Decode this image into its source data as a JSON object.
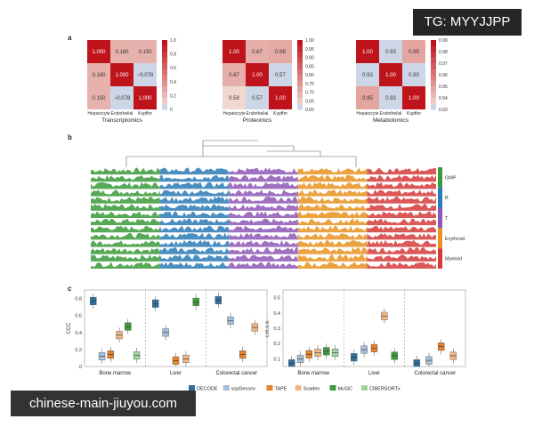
{
  "watermark_top": "TG: MYYJJPP",
  "watermark_bottom": "chinese-main-jiuyou.com",
  "panel_a": {
    "letter": "a",
    "heatmaps": [
      {
        "title": "Transcriptomics",
        "labels": [
          "Hepatocyte",
          "Endothelial",
          "Kupffer"
        ],
        "matrix": [
          [
            1.0,
            0.16,
            0.15
          ],
          [
            0.16,
            1.0,
            -0.078
          ],
          [
            0.15,
            -0.078,
            1.0
          ]
        ],
        "cell_text": [
          [
            "1.000",
            "0.160",
            "0.150"
          ],
          [
            "0.160",
            "1.000",
            "−0.078"
          ],
          [
            "0.150",
            "−0.078",
            "1.000"
          ]
        ],
        "vmin": -0.078,
        "vmax": 1.0,
        "ticks": [
          "1.0",
          "0.8",
          "0.6",
          "0.4",
          "0.2",
          "0"
        ]
      },
      {
        "title": "Proteomics",
        "labels": [
          "Hepatocyte",
          "Endothelial",
          "Kupffer"
        ],
        "matrix": [
          [
            1.0,
            0.67,
            0.68
          ],
          [
            0.67,
            1.0,
            0.57
          ],
          [
            0.58,
            0.57,
            1.0
          ]
        ],
        "cell_text": [
          [
            "1.00",
            "0.67",
            "0.68"
          ],
          [
            "0.67",
            "1.00",
            "0.57"
          ],
          [
            "0.58",
            "0.57",
            "1.00"
          ]
        ],
        "vmin": 0.57,
        "vmax": 1.0,
        "ticks": [
          "1.00",
          "0.95",
          "0.90",
          "0.85",
          "0.80",
          "0.75",
          "0.70",
          "0.65",
          "0.60"
        ]
      },
      {
        "title": "Metabolomics",
        "labels": [
          "Hepatocyte",
          "Endothelial",
          "Kupffer"
        ],
        "matrix": [
          [
            1.0,
            0.93,
            0.95
          ],
          [
            0.93,
            1.0,
            0.93
          ],
          [
            0.95,
            0.93,
            1.0
          ]
        ],
        "cell_text": [
          [
            "1.00",
            "0.93",
            "0.95"
          ],
          [
            "0.93",
            "1.00",
            "0.93"
          ],
          [
            "0.95",
            "0.93",
            "1.00"
          ]
        ],
        "vmin": 0.93,
        "vmax": 1.0,
        "ticks": [
          "0.99",
          "0.98",
          "0.97",
          "0.96",
          "0.95",
          "0.94",
          "0.93"
        ]
      }
    ]
  },
  "panel_b": {
    "letter": "b",
    "groups": [
      {
        "name": "GMP",
        "color": "#3a9a3a"
      },
      {
        "name": "B",
        "color": "#2c7bb6"
      },
      {
        "name": "T",
        "color": "#8e57b5"
      },
      {
        "name": "Erythroid",
        "color": "#e8921f"
      },
      {
        "name": "Myeloid",
        "color": "#d43b3b"
      }
    ],
    "legend": [
      "GMP",
      "B",
      "T",
      "Erythroid",
      "Myeloid"
    ],
    "track_rows": 14
  },
  "panel_c": {
    "letter": "c",
    "left": {
      "ylabel": "CCC",
      "yticks": [
        "0.8",
        "0.6",
        "0.4",
        "0.2",
        "0"
      ],
      "ylim": [
        0,
        0.9
      ],
      "groups": [
        "Bone marrow",
        "Liver",
        "Colorectal cancer"
      ]
    },
    "right": {
      "ylabel": "r.m.s.e.",
      "yticks": [
        "0.5",
        "0.4",
        "0.3",
        "0.2",
        "0.1"
      ],
      "ylim": [
        0.05,
        0.55
      ],
      "groups": [
        "Bone marrow",
        "Liver",
        "Colorectal cancer"
      ]
    },
    "methods": [
      {
        "name": "DECODE",
        "color": "#2e6f9e"
      },
      {
        "name": "scpDeconv",
        "color": "#a6bfd8"
      },
      {
        "name": "TAPE",
        "color": "#e5822a"
      },
      {
        "name": "Scaden",
        "color": "#efb583"
      },
      {
        "name": "MuSiC",
        "color": "#3d9b3d"
      },
      {
        "name": "CIBERSORTx",
        "color": "#9fd69f"
      }
    ]
  },
  "chart_data": [
    {
      "type": "box",
      "ylabel": "CCC",
      "ylim": [
        0,
        0.9
      ],
      "categories": [
        "Bone marrow",
        "Liver",
        "Colorectal cancer"
      ],
      "series": [
        {
          "name": "DECODE",
          "medians": [
            0.77,
            0.74,
            0.78
          ]
        },
        {
          "name": "scpDeconv",
          "medians": [
            0.12,
            0.4,
            0.54
          ]
        },
        {
          "name": "TAPE",
          "medians": [
            0.14,
            0.07,
            0.14
          ]
        },
        {
          "name": "Scaden",
          "medians": [
            0.37,
            0.09,
            0.46
          ]
        },
        {
          "name": "MuSiC",
          "medians": [
            0.47,
            0.76,
            null
          ]
        },
        {
          "name": "CIBERSORTx",
          "medians": [
            0.13,
            null,
            null
          ]
        }
      ]
    },
    {
      "type": "box",
      "ylabel": "r.m.s.e.",
      "ylim": [
        0.05,
        0.55
      ],
      "categories": [
        "Bone marrow",
        "Liver",
        "Colorectal cancer"
      ],
      "series": [
        {
          "name": "DECODE",
          "medians": [
            0.07,
            0.11,
            0.07
          ]
        },
        {
          "name": "scpDeconv",
          "medians": [
            0.1,
            0.16,
            0.09
          ]
        },
        {
          "name": "TAPE",
          "medians": [
            0.13,
            0.17,
            0.18
          ]
        },
        {
          "name": "Scaden",
          "medians": [
            0.14,
            0.38,
            0.12
          ]
        },
        {
          "name": "MuSiC",
          "medians": [
            0.15,
            0.12,
            null
          ]
        },
        {
          "name": "CIBERSORTx",
          "medians": [
            0.14,
            null,
            null
          ]
        }
      ]
    }
  ]
}
